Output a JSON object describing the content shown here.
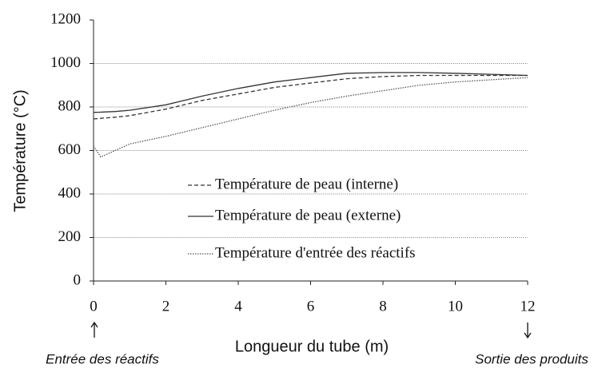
{
  "chart_data": {
    "type": "line",
    "x_label": "Longueur du tube (m)",
    "y_label": "Température (°C)",
    "annotations": [
      "Entrée des réactifs",
      "Sortie des produits"
    ],
    "x": [
      0,
      0.2,
      0.6,
      1,
      2,
      3,
      4,
      5,
      6,
      7,
      8,
      9,
      10,
      11,
      12
    ],
    "series": [
      {
        "name": "Température de peau (interne)",
        "color": "#333333",
        "style": "dashed",
        "values": [
          745,
          748,
          753,
          760,
          790,
          830,
          860,
          890,
          910,
          930,
          940,
          945,
          945,
          945,
          945
        ]
      },
      {
        "name": "Température de peau (externe)",
        "color": "#333333",
        "style": "solid",
        "values": [
          775,
          776,
          779,
          785,
          810,
          850,
          885,
          915,
          935,
          955,
          958,
          958,
          955,
          950,
          945
        ]
      },
      {
        "name": "Température d'entrée des  réactifs",
        "color": "#555555",
        "style": "dotted",
        "values": [
          620,
          570,
          600,
          630,
          665,
          705,
          745,
          785,
          820,
          850,
          875,
          900,
          915,
          925,
          935
        ]
      }
    ],
    "xlim": [
      0,
      12
    ],
    "xticks": [
      0,
      2,
      4,
      6,
      8,
      10,
      12
    ],
    "ylim": [
      0,
      1200
    ],
    "yticks": [
      0,
      200,
      400,
      600,
      800,
      1000,
      1200
    ],
    "grid": true
  }
}
